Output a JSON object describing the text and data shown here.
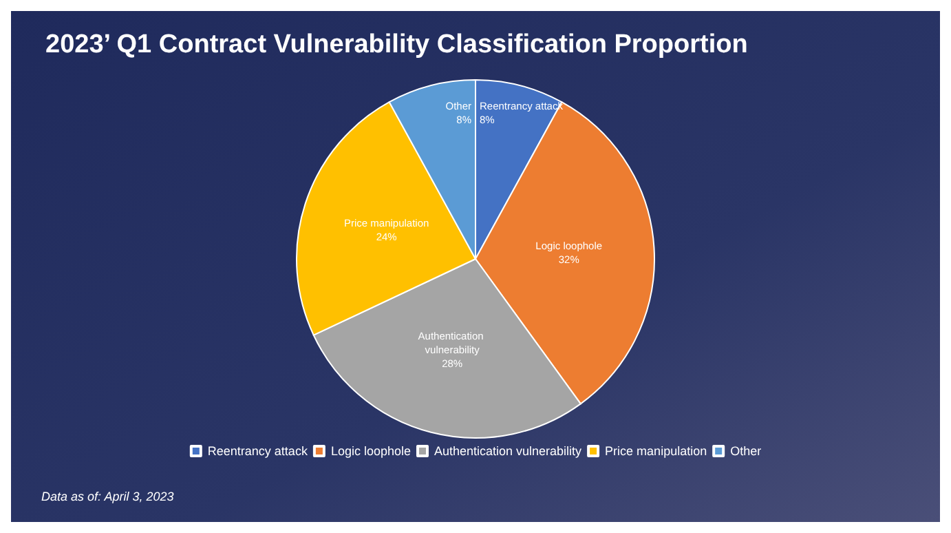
{
  "chart_data": {
    "type": "pie",
    "title": "2023’ Q1 Contract Vulnerability Classification Proportion",
    "categories": [
      "Reentrancy attack",
      "Logic loophole",
      "Authentication vulnerability",
      "Price manipulation",
      "Other"
    ],
    "values": [
      8,
      32,
      28,
      24,
      8
    ],
    "colors": [
      "#4472c4",
      "#ed7d31",
      "#a5a5a5",
      "#ffc000",
      "#5b9bd5"
    ],
    "value_labels": [
      "8%",
      "32%",
      "28%",
      "24%",
      "8%"
    ],
    "legend": "bottom",
    "annotations": [
      "Data as of: April 3, 2023"
    ]
  }
}
